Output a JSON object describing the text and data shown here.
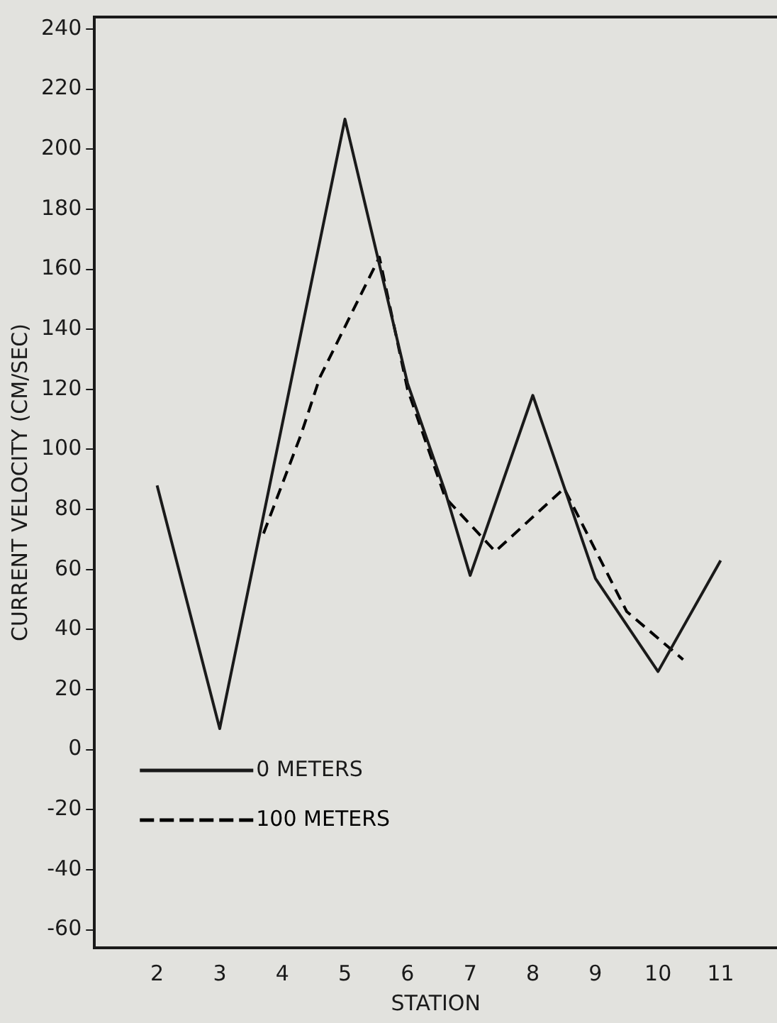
{
  "chart_data": {
    "type": "line",
    "xlabel": "STATION",
    "ylabel": "CURRENT VELOCITY (CM/SEC)",
    "xlim": [
      1,
      11.9
    ],
    "xticks": [
      2,
      3,
      4,
      5,
      6,
      7,
      8,
      9,
      10,
      11
    ],
    "ylim": [
      -66,
      244
    ],
    "yticks": [
      -60,
      -40,
      -20,
      0,
      20,
      40,
      60,
      80,
      100,
      120,
      140,
      160,
      180,
      200,
      220,
      240
    ],
    "grid": false,
    "legend": "bottom left",
    "marker": "none",
    "series": [
      {
        "name": "0 METERS",
        "color": "#1a1a1a",
        "line_style": "solid",
        "x": [
          2,
          3,
          5,
          6,
          6.6,
          7,
          8,
          9,
          10,
          11
        ],
        "values": [
          88,
          7,
          210,
          122,
          86,
          58,
          118,
          57,
          26,
          63
        ]
      },
      {
        "name": "100 METERS",
        "color": "#000000",
        "line_style": "dashed",
        "x": [
          3.7,
          4.3,
          4.6,
          5.55,
          6,
          6.6,
          7.4,
          8.5,
          9.5,
          10.4
        ],
        "values": [
          72,
          105,
          124,
          164,
          120,
          84,
          66,
          87,
          46,
          30
        ]
      }
    ]
  }
}
